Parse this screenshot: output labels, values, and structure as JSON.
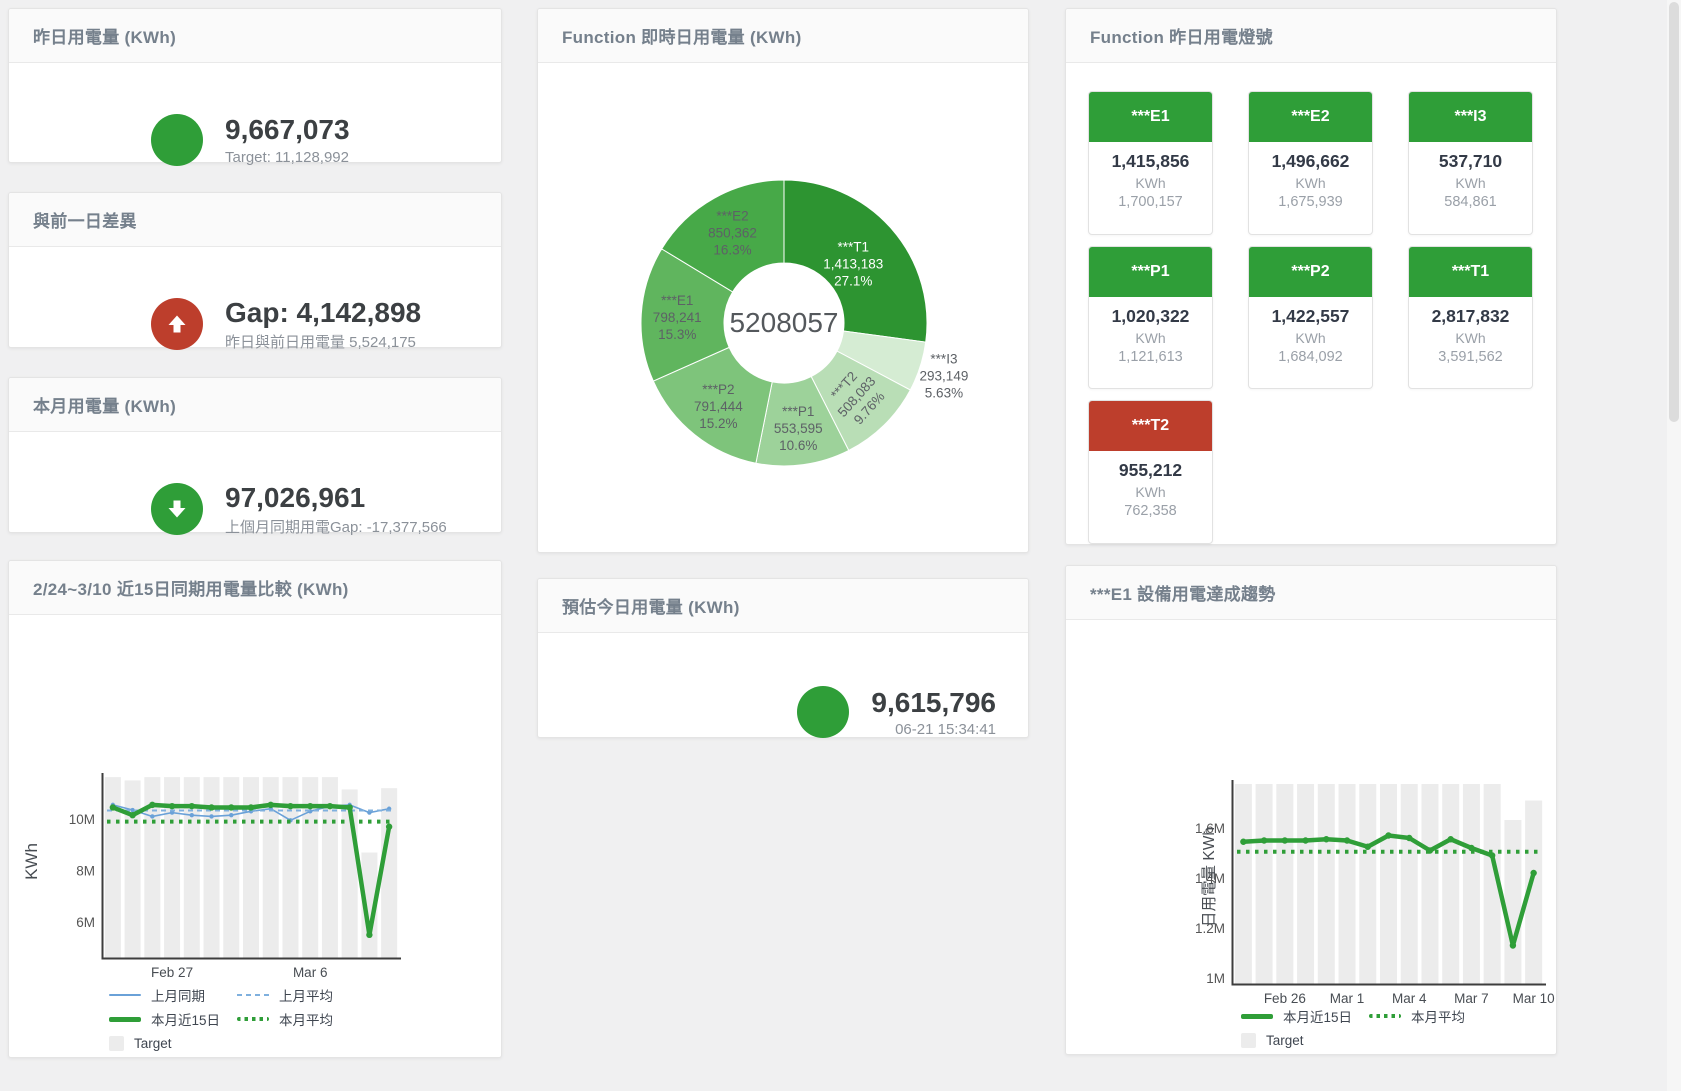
{
  "colors": {
    "green": "#2f9e38",
    "red": "#bd3e2c",
    "blue": "#6aa1d8",
    "blue_light": "#7fb0de",
    "bar": "#ececec"
  },
  "panels": {
    "yesterday": {
      "title": "昨日用電量 (KWh)",
      "value": "9,667,073",
      "subtext": "Target: 11,128,992"
    },
    "diff": {
      "title": "與前一日差異",
      "value": "Gap: 4,142,898",
      "subtext": "昨日與前日用電量 5,524,175"
    },
    "month": {
      "title": "本月用電量 (KWh)",
      "value": "97,026,961",
      "subtext": "上個月同期用電Gap: -17,377,566"
    },
    "compare": {
      "title": "2/24~3/10 近15日同期用電量比較 (KWh)"
    },
    "realtime": {
      "title": "Function 即時日用電量 (KWh)"
    },
    "estimate": {
      "title": "預估今日用電量 (KWh)",
      "value": "9,615,796",
      "subtext": "06-21 15:34:41"
    },
    "lights": {
      "title": "Function 昨日用電燈號"
    },
    "trend": {
      "title": "***E1 設備用電達成趨勢"
    }
  },
  "lights_tiles": [
    {
      "label": "***E1",
      "value": "1,415,856",
      "unit": "KWh",
      "target": "1,700,157",
      "status": "green"
    },
    {
      "label": "***E2",
      "value": "1,496,662",
      "unit": "KWh",
      "target": "1,675,939",
      "status": "green"
    },
    {
      "label": "***I3",
      "value": "537,710",
      "unit": "KWh",
      "target": "584,861",
      "status": "green"
    },
    {
      "label": "***P1",
      "value": "1,020,322",
      "unit": "KWh",
      "target": "1,121,613",
      "status": "green"
    },
    {
      "label": "***P2",
      "value": "1,422,557",
      "unit": "KWh",
      "target": "1,684,092",
      "status": "green"
    },
    {
      "label": "***T1",
      "value": "2,817,832",
      "unit": "KWh",
      "target": "3,591,562",
      "status": "green"
    },
    {
      "label": "***T2",
      "value": "955,212",
      "unit": "KWh",
      "target": "762,358",
      "status": "red"
    }
  ],
  "chart_data": [
    {
      "type": "pie",
      "title": "Function 即時日用電量 (KWh)",
      "center_total": "5208057",
      "legend_position": "none",
      "slices": [
        {
          "name": "***T1",
          "value": 1413183,
          "value_display": "1,413,183",
          "pct": "27.1%",
          "color": "#2d9431",
          "label_color": "#ffffff",
          "label_radius": 92
        },
        {
          "name": "***I3",
          "value": 293149,
          "value_display": "293,149",
          "pct": "5.63%",
          "color": "#d5ecd3",
          "label_radius": 168
        },
        {
          "name": "***T2",
          "value": 508083,
          "value_display": "508,083",
          "pct": "9.76%",
          "color": "#b9deb6",
          "label_radius": 102,
          "label_rotate": -48
        },
        {
          "name": "***P1",
          "value": 553595,
          "value_display": "553,595",
          "pct": "10.6%",
          "color": "#9dd29a",
          "label_radius": 105
        },
        {
          "name": "***P2",
          "value": 791444,
          "value_display": "791,444",
          "pct": "15.2%",
          "color": "#7ec47b",
          "label_radius": 105
        },
        {
          "name": "***E1",
          "value": 798241,
          "value_display": "798,241",
          "pct": "15.3%",
          "color": "#60b55e",
          "label_radius": 107
        },
        {
          "name": "***E2",
          "value": 850362,
          "value_display": "850,362",
          "pct": "16.3%",
          "color": "#47a948",
          "label_radius": 105
        }
      ]
    },
    {
      "type": "line",
      "title": "2/24~3/10 近15日同期用電量比較 (KWh)",
      "xlabel": "",
      "ylabel": "KWh",
      "ylim": [
        4600000,
        12100000
      ],
      "grid": false,
      "yticks": [
        {
          "value": 6000000,
          "label": "6M"
        },
        {
          "value": 8000000,
          "label": "8M"
        },
        {
          "value": 10000000,
          "label": "10M"
        }
      ],
      "xticks": [
        {
          "index": 3,
          "label": "Feb 27"
        },
        {
          "index": 10,
          "label": "Mar 6"
        }
      ],
      "bars": {
        "name": "Target",
        "values": [
          11630000,
          11500000,
          11630000,
          11630000,
          11630000,
          11630000,
          11630000,
          11630000,
          11630000,
          11630000,
          11630000,
          11630000,
          11150000,
          8700000,
          11200000
        ]
      },
      "series": [
        {
          "name": "上月同期",
          "color_key": "blue",
          "style": "solid",
          "width": 1.6,
          "marker": 2.2,
          "values": [
            10550000,
            10350000,
            10100000,
            10250000,
            10150000,
            10100000,
            10150000,
            10300000,
            10400000,
            9950000,
            10300000,
            10500000,
            10550000,
            10250000,
            10400000
          ]
        },
        {
          "name": "上月平均",
          "color_key": "blue_light",
          "style": "dashed",
          "width": 2,
          "avg": 10330000
        },
        {
          "name": "本月近15日",
          "color_key": "green",
          "style": "solid",
          "width": 4.5,
          "marker": 3.2,
          "values": [
            10450000,
            10150000,
            10550000,
            10500000,
            10500000,
            10450000,
            10450000,
            10450000,
            10550000,
            10500000,
            10500000,
            10500000,
            10450000,
            5500000,
            9700000
          ]
        },
        {
          "name": "本月平均",
          "color_key": "green",
          "style": "dotted",
          "width": 4,
          "avg": 9900000
        }
      ],
      "legend_rows": [
        [
          "上月同期",
          "上月平均"
        ],
        [
          "本月近15日",
          "本月平均"
        ],
        [
          "Target"
        ]
      ]
    },
    {
      "type": "line",
      "title": "***E1 設備用電達成趨勢",
      "xlabel": "",
      "ylabel": "日用電量 KWh",
      "ylim": [
        976000,
        1832000
      ],
      "grid": false,
      "yticks": [
        {
          "value": 1000000,
          "label": "1M"
        },
        {
          "value": 1200000,
          "label": "1.2M"
        },
        {
          "value": 1400000,
          "label": "1.4M"
        },
        {
          "value": 1600000,
          "label": "1.6M"
        }
      ],
      "xticks": [
        {
          "index": 2,
          "label": "Feb 26"
        },
        {
          "index": 5,
          "label": "Mar 1"
        },
        {
          "index": 8,
          "label": "Mar 4"
        },
        {
          "index": 11,
          "label": "Mar 7"
        },
        {
          "index": 14,
          "label": "Mar 10"
        }
      ],
      "bars": {
        "name": "Target",
        "values": [
          1776000,
          1776000,
          1776000,
          1776000,
          1776000,
          1776000,
          1776000,
          1776000,
          1776000,
          1776000,
          1776000,
          1776000,
          1776000,
          1632000,
          1710000
        ]
      },
      "series": [
        {
          "name": "本月近15日",
          "color_key": "green",
          "style": "solid",
          "width": 4.5,
          "marker": 3.2,
          "values": [
            1545000,
            1550000,
            1550000,
            1550000,
            1555000,
            1550000,
            1525000,
            1570000,
            1560000,
            1510000,
            1555000,
            1520000,
            1490000,
            1130000,
            1420000
          ]
        },
        {
          "name": "本月平均",
          "color_key": "green",
          "style": "dotted",
          "width": 4,
          "avg": 1505000
        }
      ],
      "legend_rows": [
        [
          "本月近15日",
          "本月平均"
        ],
        [
          "Target"
        ]
      ]
    }
  ]
}
